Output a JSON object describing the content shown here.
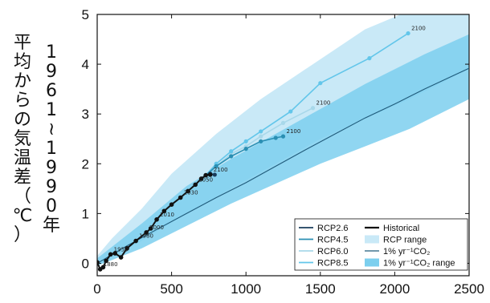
{
  "chart_data": {
    "type": "line",
    "title": "",
    "xlabel": "",
    "ylabel": "1961~1990年平均からの気温差（℃）",
    "ylabel_chars": [
      "平",
      "均",
      "か",
      "ら",
      "の",
      "気",
      "温",
      "差",
      "（",
      "℃",
      "）"
    ],
    "ylabel_digits": [
      "1",
      "9",
      "6",
      "1",
      "~",
      "1",
      "9",
      "9",
      "0",
      "年"
    ],
    "xlim": [
      0,
      2500
    ],
    "ylim": [
      -0.25,
      5
    ],
    "x_ticks": [
      "0",
      "500",
      "1000",
      "1500",
      "2000",
      "2500"
    ],
    "y_ticks": [
      "0",
      "1",
      "2",
      "3",
      "4",
      "5"
    ],
    "colors": {
      "rcp26": "#1a3d5c",
      "rcp45": "#2a8fb3",
      "rcp60": "#a8d8ea",
      "rcp85": "#63c6ea",
      "historical": "#111111",
      "rcp_range": "#c9e9f7",
      "one_pct": "#1f5a7a",
      "one_pct_range": "#7ccfee"
    },
    "series": [
      {
        "name": "Historical",
        "x": [
          0,
          20,
          40,
          60,
          90,
          120,
          160,
          200,
          260,
          330,
          360,
          400,
          450,
          500,
          560,
          610,
          660,
          700,
          730,
          760
        ],
        "y": [
          0.02,
          -0.12,
          -0.08,
          0.05,
          0.18,
          0.2,
          0.12,
          0.3,
          0.45,
          0.62,
          0.7,
          0.88,
          1.05,
          1.18,
          1.32,
          1.45,
          1.58,
          1.7,
          1.77,
          1.78
        ]
      },
      {
        "name": "RCP2.6",
        "x": [
          730,
          760,
          790
        ],
        "y": [
          1.77,
          1.8,
          1.78
        ]
      },
      {
        "name": "RCP4.5",
        "x": [
          730,
          800,
          900,
          1000,
          1100,
          1200,
          1250
        ],
        "y": [
          1.77,
          1.95,
          2.15,
          2.3,
          2.45,
          2.52,
          2.55
        ]
      },
      {
        "name": "RCP6.0",
        "x": [
          730,
          800,
          900,
          1000,
          1100,
          1250,
          1450
        ],
        "y": [
          1.77,
          1.95,
          2.2,
          2.35,
          2.55,
          2.82,
          3.12
        ]
      },
      {
        "name": "RCP8.5",
        "x": [
          730,
          800,
          900,
          1000,
          1100,
          1300,
          1500,
          1830,
          2090
        ],
        "y": [
          1.77,
          2.0,
          2.25,
          2.45,
          2.65,
          3.05,
          3.62,
          4.12,
          4.62
        ]
      },
      {
        "name": "1% yr-1CO2",
        "x": [
          0,
          200,
          400,
          600,
          800,
          1000,
          1200,
          1400,
          1600,
          1800,
          2000,
          2200,
          2400,
          2500
        ],
        "y": [
          0,
          0.35,
          0.68,
          1.0,
          1.32,
          1.62,
          1.95,
          2.28,
          2.6,
          2.92,
          3.2,
          3.5,
          3.78,
          3.92
        ]
      }
    ],
    "point_labels": [
      {
        "text": "1880",
        "x": 20,
        "y": -0.12
      },
      {
        "text": "1950",
        "x": 90,
        "y": 0.18
      },
      {
        "text": "1980",
        "x": 260,
        "y": 0.45
      },
      {
        "text": "2000",
        "x": 330,
        "y": 0.62
      },
      {
        "text": "2010",
        "x": 400,
        "y": 0.88
      },
      {
        "text": "2030",
        "x": 560,
        "y": 1.32
      },
      {
        "text": "2050",
        "x": 660,
        "y": 1.58
      },
      {
        "text": "2100",
        "x": 760,
        "y": 1.78
      },
      {
        "text": "2100",
        "x": 1250,
        "y": 2.55
      },
      {
        "text": "2100",
        "x": 1450,
        "y": 3.12
      },
      {
        "text": "2100",
        "x": 2090,
        "y": 4.62
      }
    ],
    "legend": {
      "placement": "bottom-right",
      "left_entries": [
        "RCP2.6",
        "RCP4.5",
        "RCP6.0",
        "RCP8.5"
      ],
      "right_entries": [
        "Historical",
        "RCP range",
        "1% yr⁻¹CO₂",
        "1% yr⁻¹CO₂ range"
      ]
    }
  }
}
